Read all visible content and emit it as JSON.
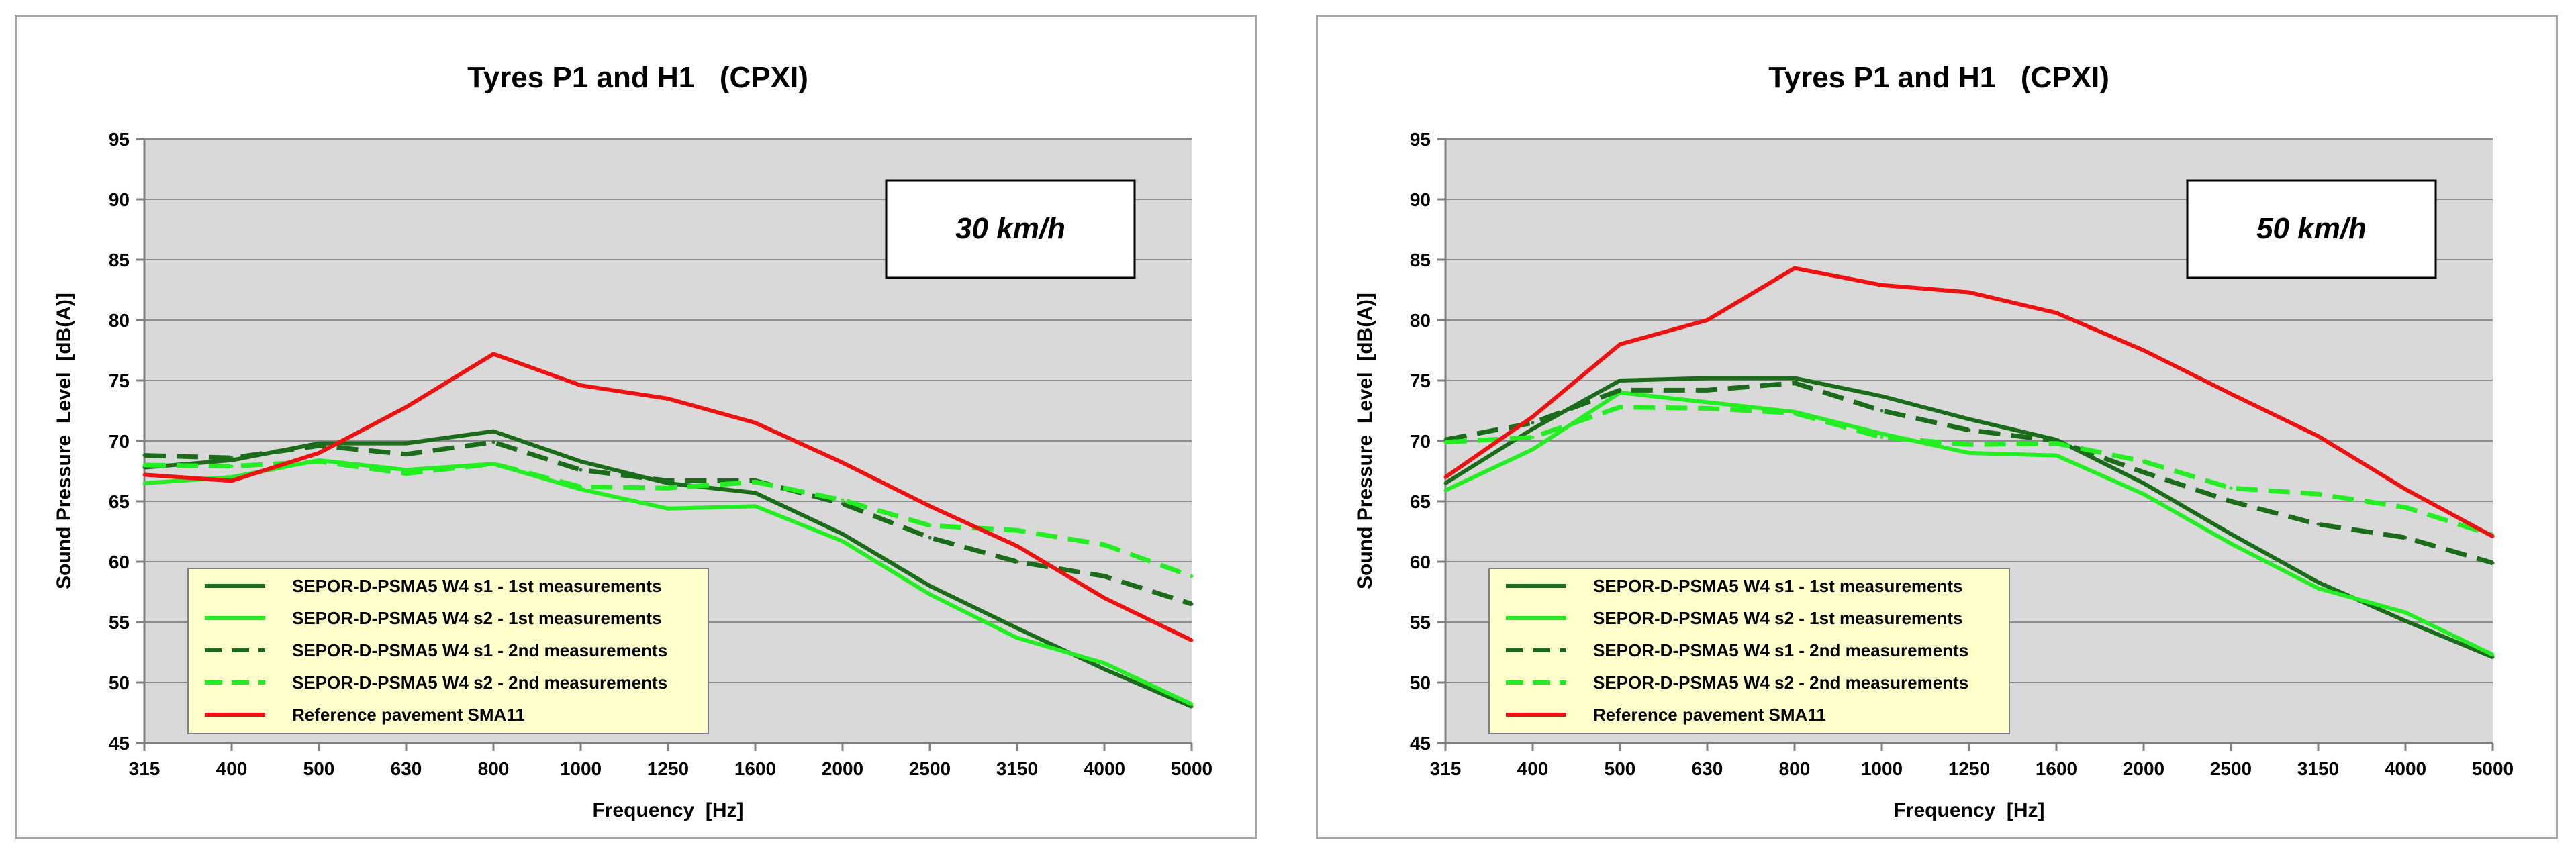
{
  "chart_data": [
    {
      "type": "line",
      "title": "Tyres P1 and H1   (CPXI)",
      "speed_label": "30 km/h",
      "xlabel": "Frequency  [Hz]",
      "ylabel": "Sound Pressure  Level  [dB(A)]",
      "categories": [
        "315",
        "400",
        "500",
        "630",
        "800",
        "1000",
        "1250",
        "1600",
        "2000",
        "2500",
        "3150",
        "4000",
        "5000"
      ],
      "y_ticks": [
        45,
        50,
        55,
        60,
        65,
        70,
        75,
        80,
        85,
        90,
        95
      ],
      "ylim": [
        45,
        95
      ],
      "grid": "horizontal",
      "legend_position": "bottom-left",
      "series": [
        {
          "name": "SEPOR-D-PSMA5 W4 s1 - 1st measurements",
          "color": "#1a6b1a",
          "dash": "solid",
          "values": [
            67.8,
            68.4,
            69.8,
            69.8,
            70.8,
            68.3,
            66.5,
            65.7,
            62.3,
            58.0,
            54.5,
            51.1,
            48.0
          ]
        },
        {
          "name": "SEPOR-D-PSMA5 W4 s2 - 1st measurements",
          "color": "#22ee22",
          "dash": "solid",
          "values": [
            66.5,
            67.0,
            68.4,
            67.6,
            68.1,
            66.0,
            64.4,
            64.6,
            61.7,
            57.3,
            53.7,
            51.6,
            48.2
          ]
        },
        {
          "name": "SEPOR-D-PSMA5 W4 s1 - 2nd measurements",
          "color": "#1a6b1a",
          "dash": "dashed",
          "values": [
            68.8,
            68.6,
            69.6,
            68.9,
            69.9,
            67.6,
            66.7,
            66.7,
            64.8,
            62.0,
            60.0,
            58.8,
            56.5
          ]
        },
        {
          "name": "SEPOR-D-PSMA5 W4 s2 - 2nd measurements",
          "color": "#22ee22",
          "dash": "dashed",
          "values": [
            68.0,
            67.9,
            68.3,
            67.3,
            68.1,
            66.2,
            66.1,
            66.6,
            65.1,
            63.0,
            62.6,
            61.4,
            58.8
          ]
        },
        {
          "name": "Reference pavement SMA11",
          "color": "#ee1111",
          "dash": "solid",
          "values": [
            67.2,
            66.7,
            69.0,
            72.8,
            77.2,
            74.6,
            73.5,
            71.5,
            68.2,
            64.6,
            61.3,
            57.0,
            53.5
          ]
        }
      ]
    },
    {
      "type": "line",
      "title": "Tyres P1 and H1   (CPXI)",
      "speed_label": "50 km/h",
      "xlabel": "Frequency  [Hz]",
      "ylabel": "Sound Pressure  Level  [dB(A)]",
      "categories": [
        "315",
        "400",
        "500",
        "630",
        "800",
        "1000",
        "1250",
        "1600",
        "2000",
        "2500",
        "3150",
        "4000",
        "5000"
      ],
      "y_ticks": [
        45,
        50,
        55,
        60,
        65,
        70,
        75,
        80,
        85,
        90,
        95
      ],
      "ylim": [
        45,
        95
      ],
      "grid": "horizontal",
      "legend_position": "bottom-left",
      "series": [
        {
          "name": "SEPOR-D-PSMA5 W4 s1 - 1st measurements",
          "color": "#1a6b1a",
          "dash": "solid",
          "values": [
            66.5,
            71.0,
            75.0,
            75.2,
            75.2,
            73.7,
            71.8,
            70.1,
            66.5,
            62.3,
            58.3,
            55.1,
            52.1
          ]
        },
        {
          "name": "SEPOR-D-PSMA5 W4 s2 - 1st measurements",
          "color": "#22ee22",
          "dash": "solid",
          "values": [
            65.9,
            69.3,
            74.0,
            73.2,
            72.4,
            70.6,
            69.0,
            68.8,
            65.6,
            61.5,
            57.8,
            55.8,
            52.3
          ]
        },
        {
          "name": "SEPOR-D-PSMA5 W4 s1 - 2nd measurements",
          "color": "#1a6b1a",
          "dash": "dashed",
          "values": [
            70.1,
            71.5,
            74.2,
            74.2,
            74.8,
            72.5,
            70.9,
            70.0,
            67.4,
            65.0,
            63.1,
            62.0,
            59.9
          ]
        },
        {
          "name": "SEPOR-D-PSMA5 W4 s2 - 2nd measurements",
          "color": "#22ee22",
          "dash": "dashed",
          "values": [
            69.9,
            70.3,
            72.8,
            72.7,
            72.3,
            70.3,
            69.7,
            69.8,
            68.3,
            66.1,
            65.6,
            64.5,
            62.2
          ]
        },
        {
          "name": "Reference pavement SMA11",
          "color": "#ee1111",
          "dash": "solid",
          "values": [
            67.0,
            72.0,
            78.0,
            80.0,
            84.3,
            82.9,
            82.3,
            80.6,
            77.5,
            73.9,
            70.4,
            66.0,
            62.1
          ]
        }
      ]
    }
  ]
}
